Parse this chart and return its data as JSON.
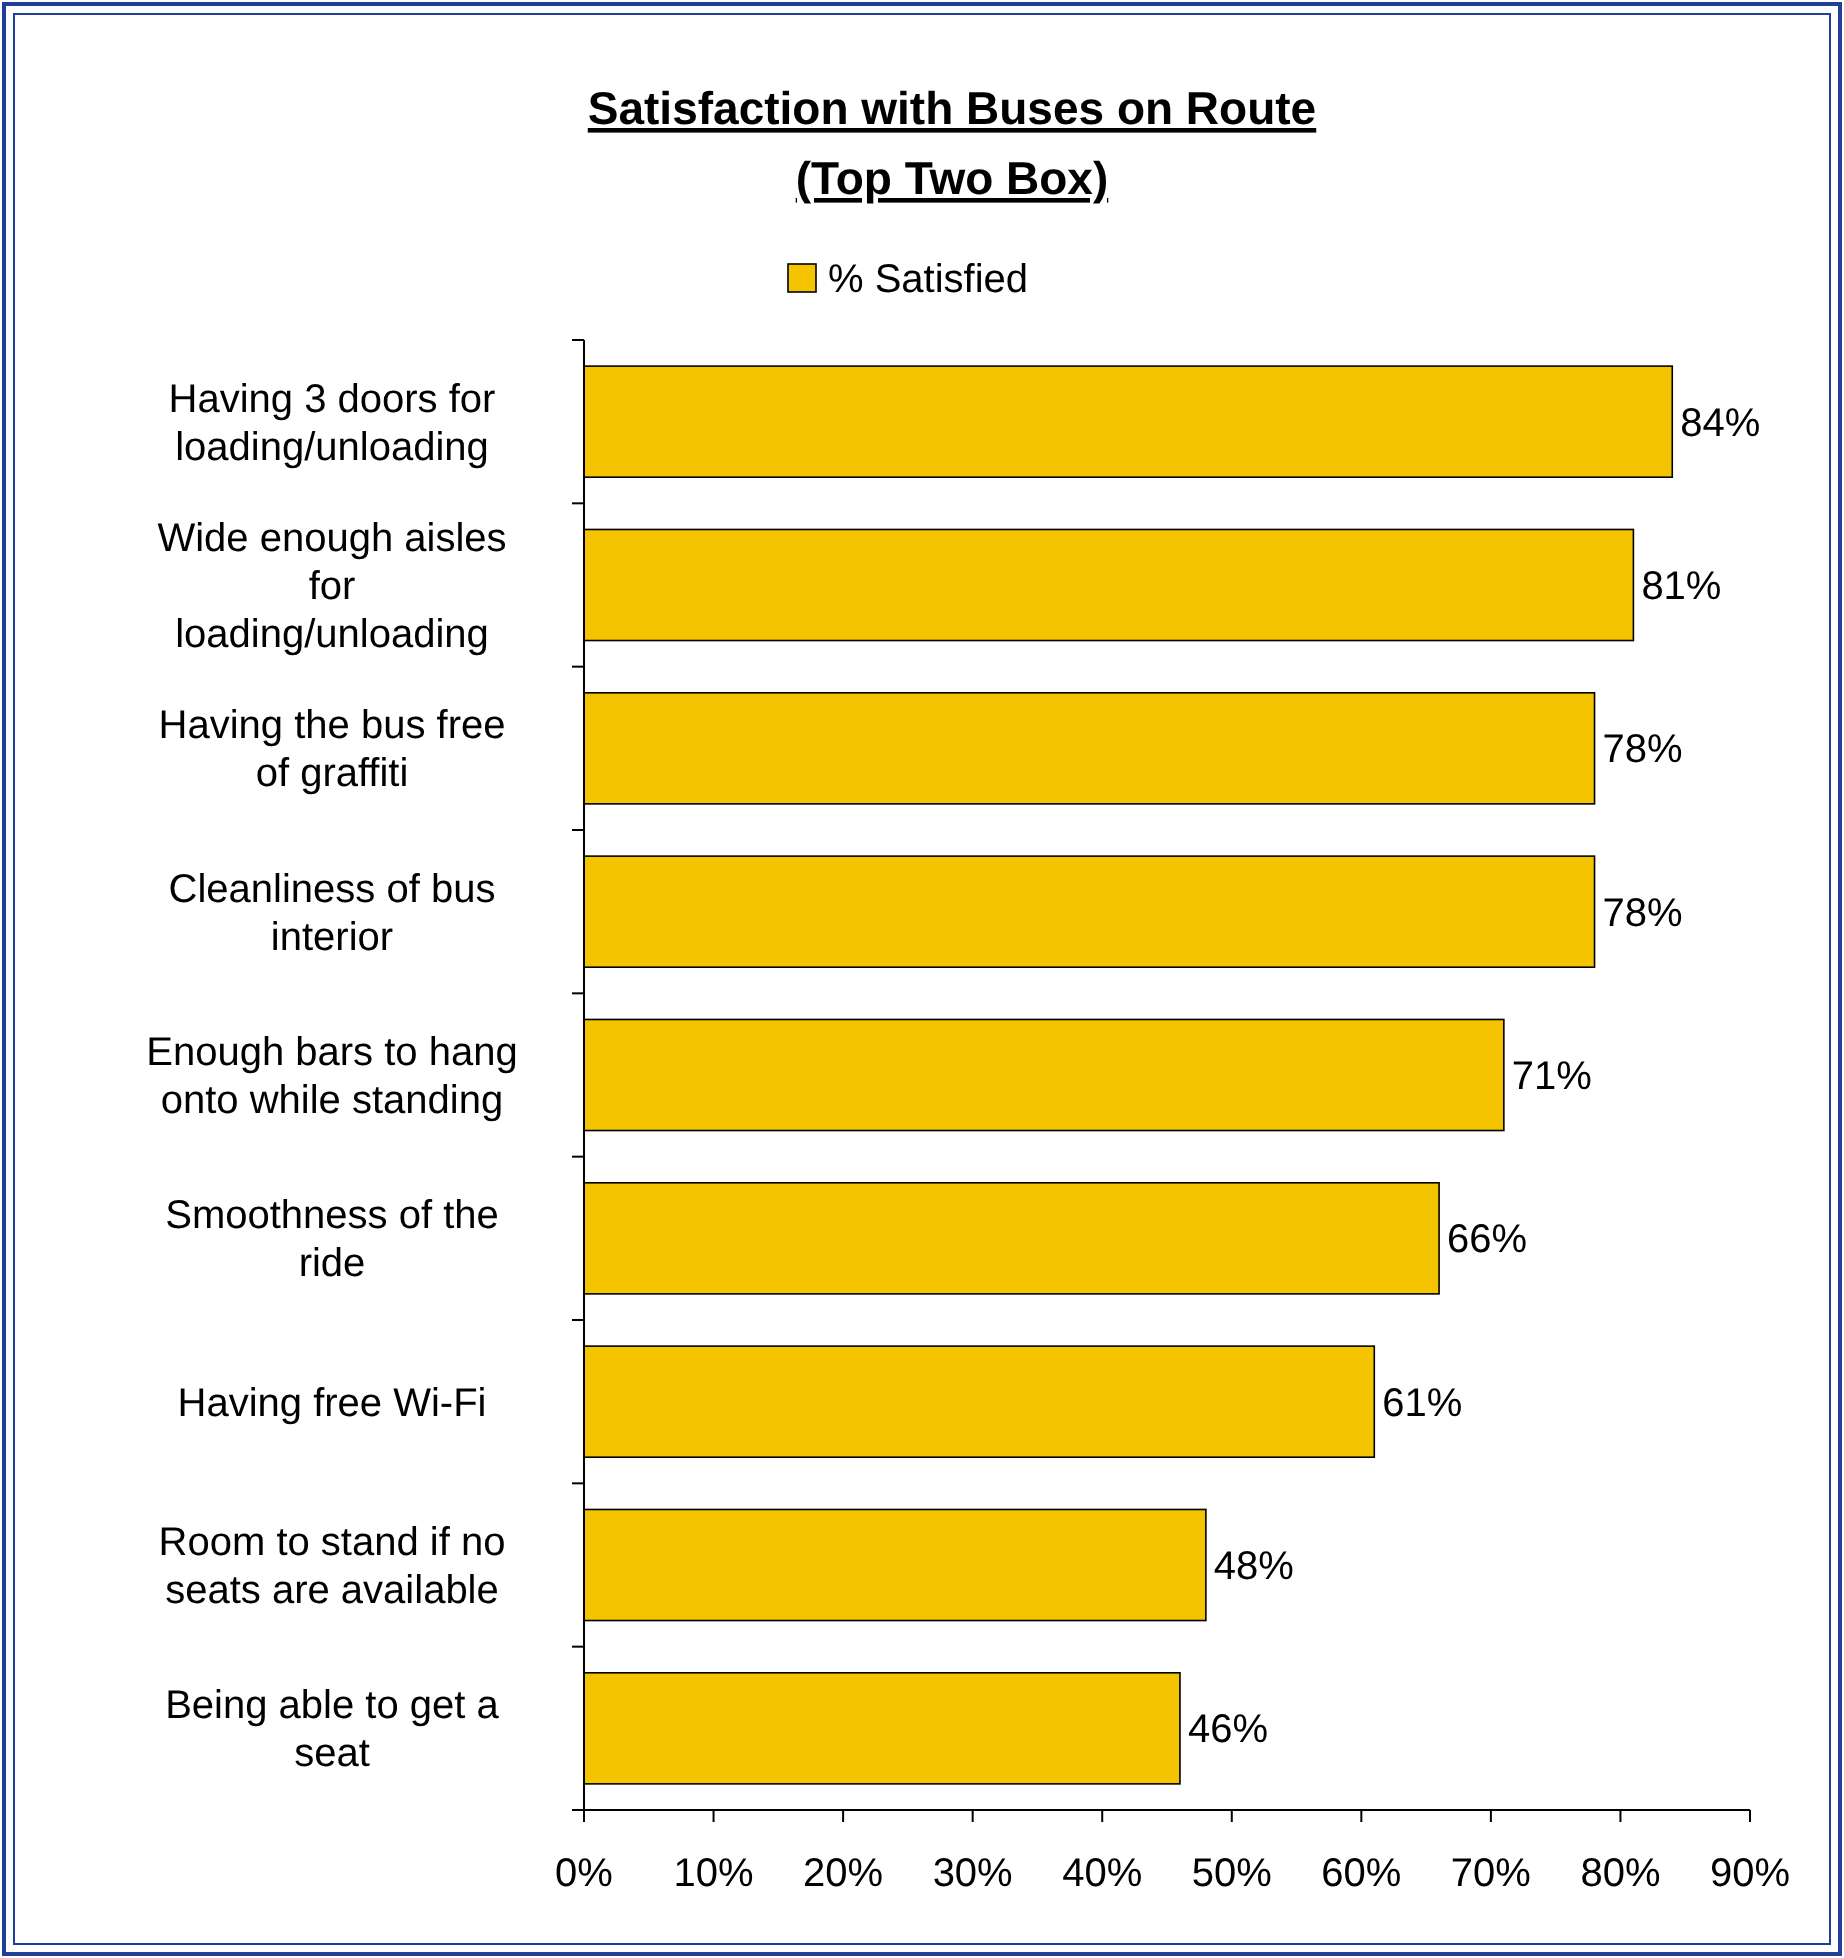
{
  "chart_data": {
    "type": "bar",
    "orientation": "horizontal",
    "title": "Satisfaction with Buses on Route\n(Top Two Box)",
    "categories": [
      "Having 3 doors for loading/unloading",
      "Wide enough aisles for loading/unloading",
      "Having the bus free of graffiti",
      "Cleanliness of bus interior",
      "Enough bars to hang onto while standing",
      "Smoothness of the ride",
      "Having free Wi-Fi",
      "Room to stand if no seats are available",
      "Being able to get a seat"
    ],
    "series": [
      {
        "name": "% Satisfied",
        "color": "#f5c400",
        "values": [
          84,
          81,
          78,
          78,
          71,
          66,
          61,
          48,
          46
        ],
        "value_labels": [
          "84%",
          "81%",
          "78%",
          "78%",
          "71%",
          "66%",
          "61%",
          "48%",
          "46%"
        ]
      }
    ],
    "xlim": [
      0,
      90
    ],
    "xticks": [
      {
        "value": 0,
        "label": "0%"
      },
      {
        "value": 10,
        "label": "10%"
      },
      {
        "value": 20,
        "label": "20%"
      },
      {
        "value": 30,
        "label": "30%"
      },
      {
        "value": 40,
        "label": "40%"
      },
      {
        "value": 50,
        "label": "50%"
      },
      {
        "value": 60,
        "label": "60%"
      },
      {
        "value": 70,
        "label": "70%"
      },
      {
        "value": 80,
        "label": "80%"
      },
      {
        "value": 90,
        "label": "90%"
      }
    ],
    "legend": "top",
    "grid": false
  }
}
